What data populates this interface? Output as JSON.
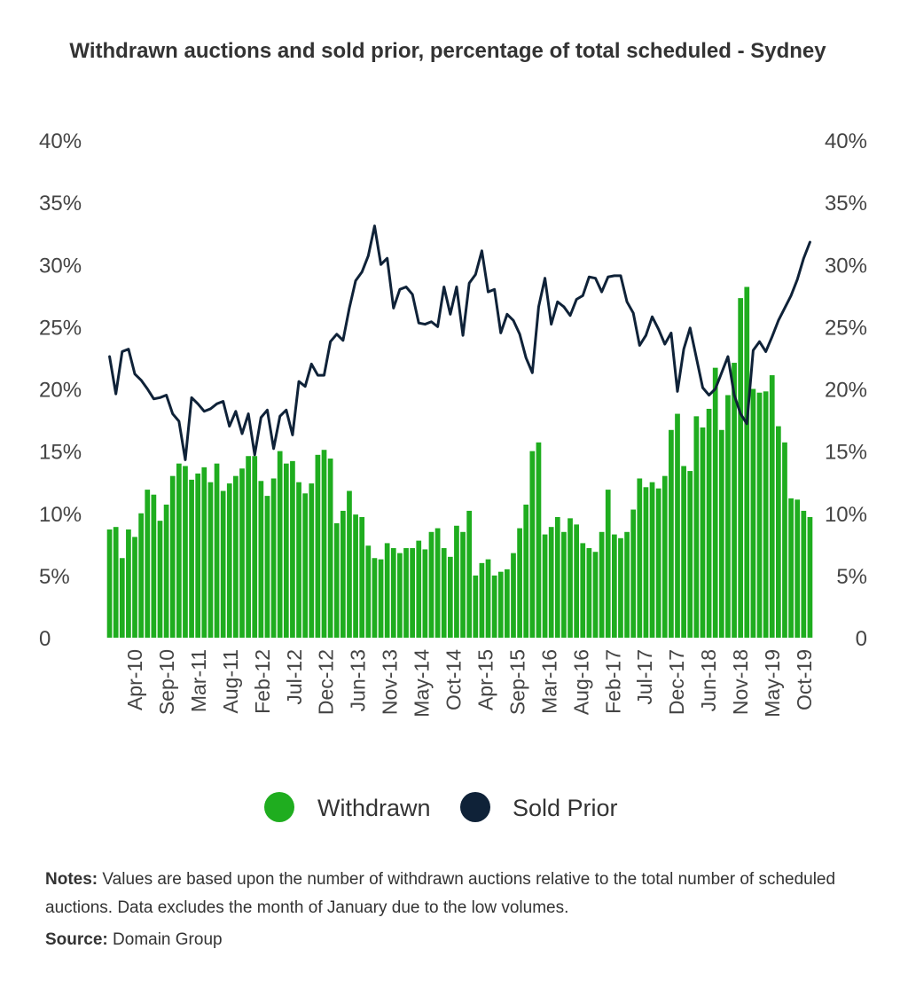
{
  "chart_data": {
    "type": "bar+line",
    "title": "Withdrawn auctions and sold prior, percentage of total scheduled - Sydney",
    "y_ticks": [
      "0",
      "5%",
      "10%",
      "15%",
      "20%",
      "25%",
      "30%",
      "35%",
      "40%"
    ],
    "ylim": [
      0,
      40
    ],
    "dual_axis": true,
    "x_tick_labels": [
      "Apr-10",
      "Sep-10",
      "Mar-11",
      "Aug-11",
      "Feb-12",
      "Jul-12",
      "Dec-12",
      "Jun-13",
      "Nov-13",
      "May-14",
      "Oct-14",
      "Apr-15",
      "Sep-15",
      "Mar-16",
      "Aug-16",
      "Feb-17",
      "Jul-17",
      "Dec-17",
      "Jun-18",
      "Nov-18",
      "May-19",
      "Oct-19"
    ],
    "grid": false,
    "legend_position": "bottom",
    "colors": {
      "withdrawn": "#1fad1f",
      "sold_prior": "#0f2238"
    },
    "series": [
      {
        "name": "Withdrawn",
        "type": "bar",
        "values": [
          8.7,
          8.9,
          6.4,
          8.7,
          8.1,
          10.0,
          11.9,
          11.5,
          9.4,
          10.7,
          13.0,
          14.0,
          13.8,
          12.7,
          13.2,
          13.7,
          12.5,
          14.0,
          11.8,
          12.4,
          13.0,
          13.6,
          14.6,
          14.6,
          12.6,
          11.4,
          12.8,
          15.0,
          14.0,
          14.2,
          12.5,
          11.6,
          12.4,
          14.7,
          15.1,
          14.4,
          9.2,
          10.2,
          11.8,
          9.9,
          9.7,
          7.4,
          6.4,
          6.3,
          7.6,
          7.2,
          6.8,
          7.2,
          7.2,
          7.8,
          7.1,
          8.5,
          8.8,
          7.2,
          6.5,
          9.0,
          8.5,
          10.2,
          5.0,
          6.0,
          6.3,
          5.0,
          5.3,
          5.5,
          6.8,
          8.8,
          10.7,
          15.0,
          15.7,
          8.3,
          8.9,
          9.7,
          8.5,
          9.6,
          9.1,
          7.6,
          7.2,
          6.9,
          8.5,
          11.9,
          8.3,
          8.0,
          8.5,
          10.3,
          12.8,
          12.1,
          12.5,
          12.0,
          13.0,
          16.7,
          18.0,
          13.8,
          13.4,
          17.8,
          16.9,
          18.4,
          21.7,
          16.7,
          19.5,
          22.1,
          27.3,
          28.2,
          20.0,
          19.7,
          19.8,
          21.1,
          17.0,
          15.7,
          11.2,
          11.1,
          10.2,
          9.7
        ],
        "notes": "monthly values, January excluded"
      },
      {
        "name": "Sold Prior",
        "type": "line",
        "values": [
          22.6,
          19.6,
          23.0,
          23.2,
          21.2,
          20.7,
          20.0,
          19.2,
          19.3,
          19.5,
          18.0,
          17.4,
          14.3,
          19.3,
          18.8,
          18.2,
          18.4,
          18.8,
          19.0,
          17.0,
          18.2,
          16.4,
          18.0,
          14.7,
          17.7,
          18.3,
          15.2,
          17.8,
          18.3,
          16.3,
          20.6,
          20.2,
          22.0,
          21.1,
          21.1,
          23.8,
          24.4,
          23.9,
          26.5,
          28.7,
          29.4,
          30.7,
          33.1,
          30.0,
          30.5,
          26.5,
          28.0,
          28.2,
          27.6,
          25.3,
          25.2,
          25.4,
          25.0,
          28.2,
          26.0,
          28.2,
          24.3,
          28.5,
          29.2,
          31.1,
          27.8,
          28.0,
          24.5,
          26.0,
          25.5,
          24.4,
          22.5,
          21.3,
          26.6,
          28.9,
          25.2,
          27.0,
          26.6,
          25.9,
          27.2,
          27.5,
          29.0,
          28.9,
          27.8,
          29.0,
          29.1,
          29.1,
          27.0,
          26.1,
          23.5,
          24.3,
          25.8,
          24.8,
          23.6,
          24.5,
          19.8,
          23.2,
          24.9,
          22.5,
          20.1,
          19.5,
          20.0,
          21.3,
          22.6,
          19.5,
          18.0,
          17.2,
          23.1,
          23.8,
          23.0,
          24.2,
          25.5,
          26.5,
          27.5,
          28.8,
          30.5,
          31.8
        ]
      }
    ]
  },
  "notes": {
    "label": "Notes:",
    "text": "Values are based upon the number of withdrawn auctions relative to the total number of scheduled auctions. Data excludes the month of January due to the low volumes."
  },
  "source": {
    "label": "Source:",
    "text": "Domain Group"
  }
}
